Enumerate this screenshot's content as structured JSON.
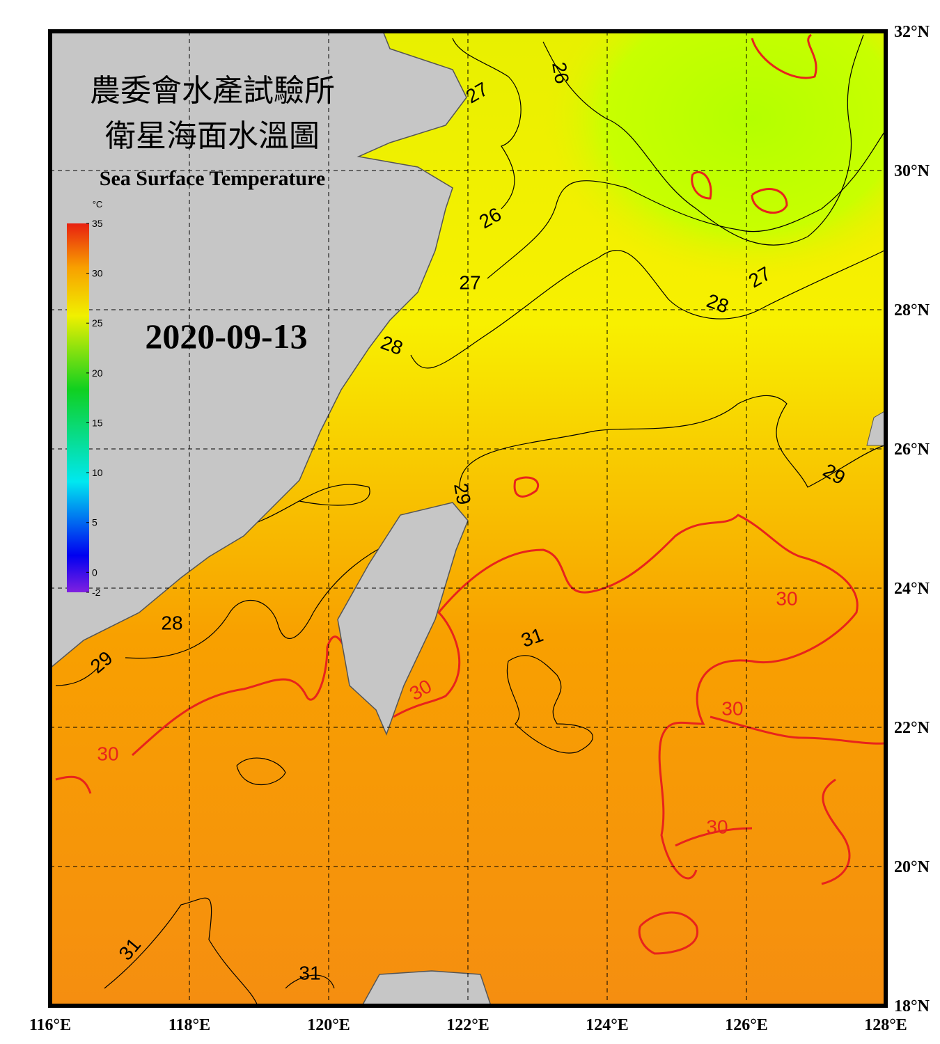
{
  "header": {
    "title_zh_1": "農委會水產試驗所",
    "title_zh_2": "衛星海面水溫圖",
    "title_en": "Sea Surface Temperature",
    "date": "2020-09-13"
  },
  "colorbar": {
    "unit": "°C",
    "ticks": [
      -2,
      0,
      5,
      10,
      15,
      20,
      25,
      30,
      35
    ]
  },
  "map": {
    "xlim": [
      116,
      128
    ],
    "ylim": [
      18,
      32
    ],
    "xticks": [
      {
        "value": 116,
        "label": "116°E"
      },
      {
        "value": 118,
        "label": "118°E"
      },
      {
        "value": 120,
        "label": "120°E"
      },
      {
        "value": 122,
        "label": "122°E"
      },
      {
        "value": 124,
        "label": "124°E"
      },
      {
        "value": 126,
        "label": "126°E"
      },
      {
        "value": 128,
        "label": "128°E"
      }
    ],
    "yticks": [
      {
        "value": 18,
        "label": "18°N"
      },
      {
        "value": 20,
        "label": "20°N"
      },
      {
        "value": 22,
        "label": "22°N"
      },
      {
        "value": 24,
        "label": "24°N"
      },
      {
        "value": 26,
        "label": "26°N"
      },
      {
        "value": 28,
        "label": "28°N"
      },
      {
        "value": 30,
        "label": "30°N"
      },
      {
        "value": 32,
        "label": "32°N"
      }
    ],
    "contours": [
      {
        "level": 27,
        "color": "#000000"
      },
      {
        "level": 26,
        "color": "#000000"
      },
      {
        "level": 26,
        "color": "#000000"
      },
      {
        "level": 27,
        "color": "#000000"
      },
      {
        "level": 27,
        "color": "#000000"
      },
      {
        "level": 28,
        "color": "#000000"
      },
      {
        "level": 28,
        "color": "#000000"
      },
      {
        "level": 29,
        "color": "#000000"
      },
      {
        "level": 29,
        "color": "#000000"
      },
      {
        "level": 30,
        "color": "#e8231c"
      },
      {
        "level": 31,
        "color": "#000000"
      },
      {
        "level": 30,
        "color": "#e8231c"
      },
      {
        "level": 30,
        "color": "#e8231c"
      },
      {
        "level": 30,
        "color": "#e8231c"
      },
      {
        "level": 30,
        "color": "#e8231c"
      },
      {
        "level": 28,
        "color": "#000000"
      },
      {
        "level": 29,
        "color": "#000000"
      },
      {
        "level": 31,
        "color": "#000000"
      },
      {
        "level": 31,
        "color": "#000000"
      }
    ]
  }
}
